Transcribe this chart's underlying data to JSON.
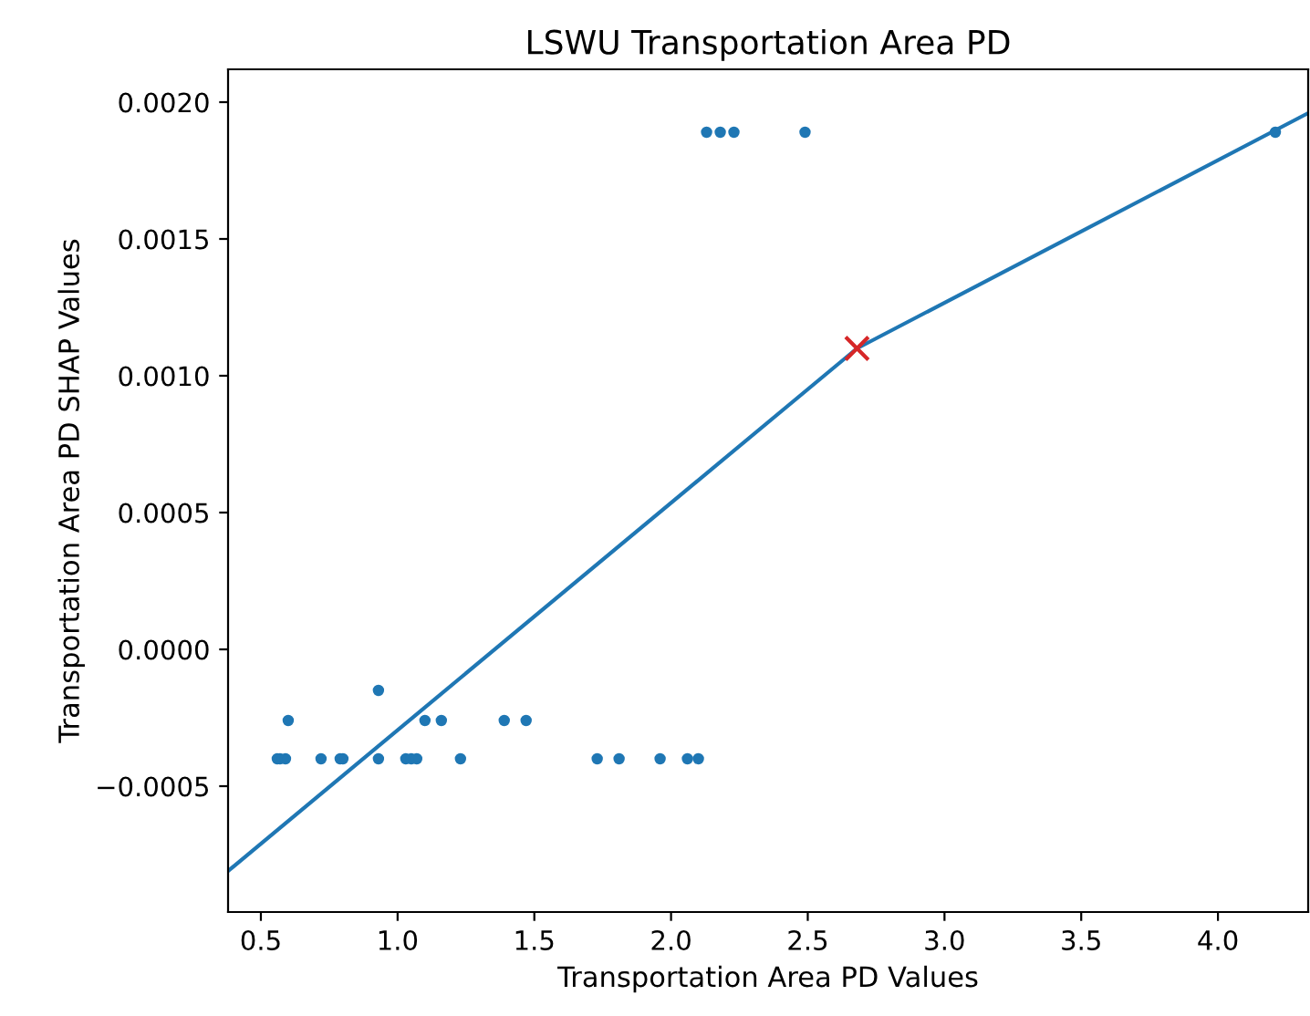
{
  "chart_data": {
    "type": "scatter",
    "title": "LSWU Transportation Area PD",
    "xlabel": "Transportation Area PD Values",
    "ylabel": "Transportation Area PD SHAP Values",
    "series": [
      {
        "color": "#1f77b4",
        "marker": "circle",
        "x": [
          0.56,
          0.57,
          0.59,
          0.72,
          0.79,
          0.8,
          0.93,
          1.03,
          1.05,
          1.07,
          1.23,
          1.73,
          1.81,
          1.96,
          2.06,
          2.1,
          0.6,
          1.1,
          1.16,
          1.39,
          1.47,
          0.93,
          2.13,
          2.18,
          2.23,
          2.49,
          4.21
        ],
        "values": [
          -0.0004,
          -0.0004,
          -0.0004,
          -0.0004,
          -0.0004,
          -0.0004,
          -0.0004,
          -0.0004,
          -0.0004,
          -0.0004,
          -0.0004,
          -0.0004,
          -0.0004,
          -0.0004,
          -0.0004,
          -0.0004,
          -0.00026,
          -0.00026,
          -0.00026,
          -0.00026,
          -0.00026,
          -0.00015,
          0.00189,
          0.00189,
          0.00189,
          0.00189,
          0.00189
        ]
      },
      {
        "type": "line",
        "color": "#1f77b4",
        "marker": "none",
        "x": [
          0.38,
          2.68,
          4.33
        ],
        "values": [
          -0.00081,
          0.0011,
          0.00196
        ]
      },
      {
        "type": "scatter",
        "color": "#d62728",
        "marker": "cross",
        "x": [
          2.68
        ],
        "values": [
          0.0011
        ]
      }
    ],
    "xlim": [
      0.38,
      4.33
    ],
    "ylim": [
      -0.00096,
      0.00212
    ],
    "xticks": [
      {
        "value": 0.5,
        "label": "0.5"
      },
      {
        "value": 1.0,
        "label": "1.0"
      },
      {
        "value": 1.5,
        "label": "1.5"
      },
      {
        "value": 2.0,
        "label": "2.0"
      },
      {
        "value": 2.5,
        "label": "2.5"
      },
      {
        "value": 3.0,
        "label": "3.0"
      },
      {
        "value": 3.5,
        "label": "3.5"
      },
      {
        "value": 4.0,
        "label": "4.0"
      }
    ],
    "yticks": [
      {
        "value": -0.0005,
        "label": "−0.0005"
      },
      {
        "value": 0,
        "label": "0.0000"
      },
      {
        "value": 0.0005,
        "label": "0.0005"
      },
      {
        "value": 0.001,
        "label": "0.0010"
      },
      {
        "value": 0.0015,
        "label": "0.0015"
      },
      {
        "value": 0.002,
        "label": "0.0020"
      }
    ],
    "grid": false,
    "legend": false
  }
}
